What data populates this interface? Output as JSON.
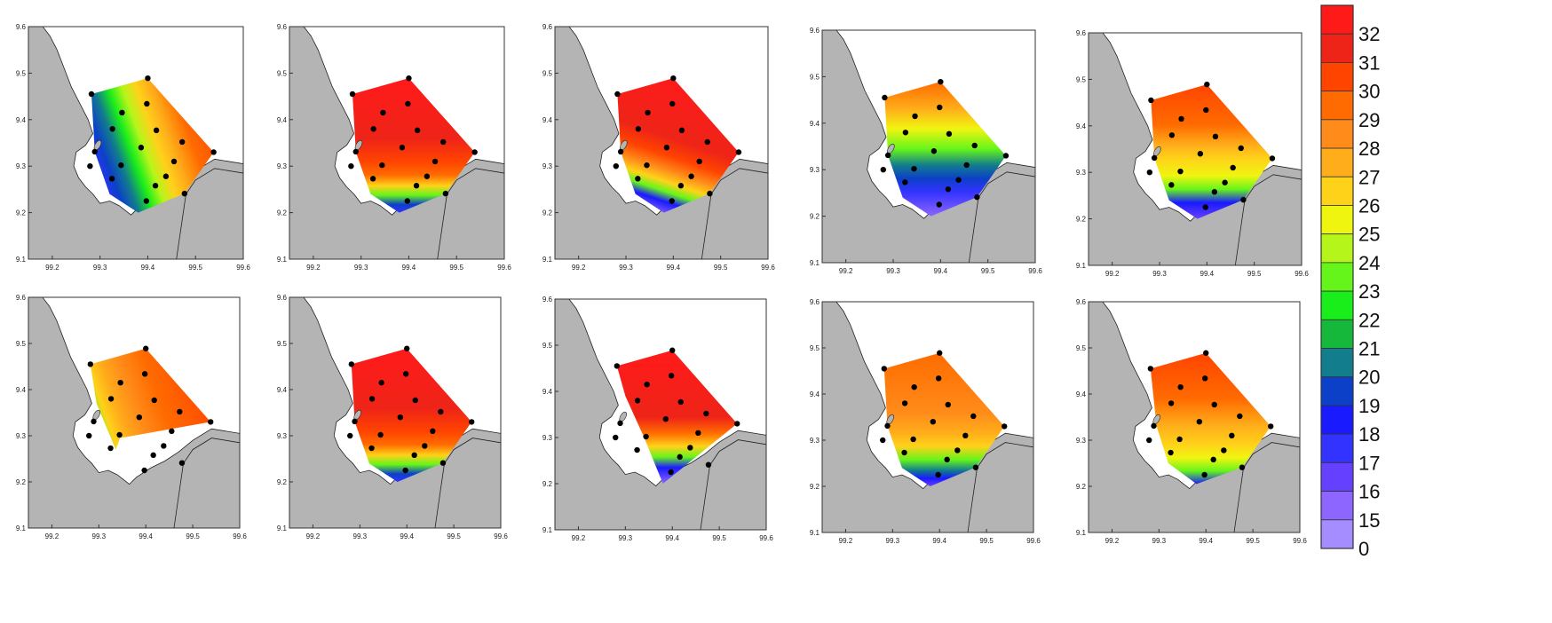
{
  "axes": {
    "x_ticks": [
      "99.2",
      "99.3",
      "99.4",
      "99.5",
      "99.6"
    ],
    "y_ticks": [
      "9.1",
      "9.2",
      "9.3",
      "9.4",
      "9.5",
      "9.6"
    ],
    "x_range": [
      99.15,
      99.6
    ],
    "y_range": [
      9.1,
      9.6
    ]
  },
  "colorbar": {
    "labels": [
      "32",
      "31",
      "30",
      "29",
      "28",
      "27",
      "26",
      "25",
      "24",
      "23",
      "22",
      "21",
      "20",
      "19",
      "18",
      "17",
      "16",
      "15",
      "0"
    ],
    "colors": [
      "#ff1a1a",
      "#ee2418",
      "#ff4400",
      "#ff6b00",
      "#ff8c1a",
      "#ffad1a",
      "#ffd21a",
      "#f0f510",
      "#b6f51a",
      "#66f51a",
      "#1aee1a",
      "#16b83c",
      "#127d8c",
      "#0c40c8",
      "#1a1aff",
      "#3333ff",
      "#6640ff",
      "#8c66ff",
      "#a58cff"
    ]
  },
  "stations": [
    [
      99.282,
      9.455
    ],
    [
      99.4,
      9.489
    ],
    [
      99.346,
      9.415
    ],
    [
      99.398,
      9.434
    ],
    [
      99.326,
      9.38
    ],
    [
      99.418,
      9.377
    ],
    [
      99.472,
      9.352
    ],
    [
      99.386,
      9.34
    ],
    [
      99.455,
      9.31
    ],
    [
      99.289,
      9.331
    ],
    [
      99.344,
      9.302
    ],
    [
      99.279,
      9.3
    ],
    [
      99.538,
      9.33
    ],
    [
      99.325,
      9.273
    ],
    [
      99.438,
      9.278
    ],
    [
      99.416,
      9.258
    ],
    [
      99.477,
      9.241
    ],
    [
      99.397,
      9.225
    ]
  ],
  "panels": [
    {
      "scheme": "mixed_west_blue",
      "cover": "full"
    },
    {
      "scheme": "red_south_blue",
      "cover": "full"
    },
    {
      "scheme": "red_southwest_violet",
      "cover": "full"
    },
    {
      "scheme": "green_band_blue",
      "cover": "full"
    },
    {
      "scheme": "orange_center_green",
      "cover": "full"
    },
    {
      "scheme": "orange_partial",
      "cover": "partial_west"
    },
    {
      "scheme": "red_south_blue",
      "cover": "full"
    },
    {
      "scheme": "red_triangle_violet",
      "cover": "partial_triangle"
    },
    {
      "scheme": "orange_south_blue",
      "cover": "full"
    },
    {
      "scheme": "orange_south_yellow",
      "cover": "partial_south"
    }
  ]
}
